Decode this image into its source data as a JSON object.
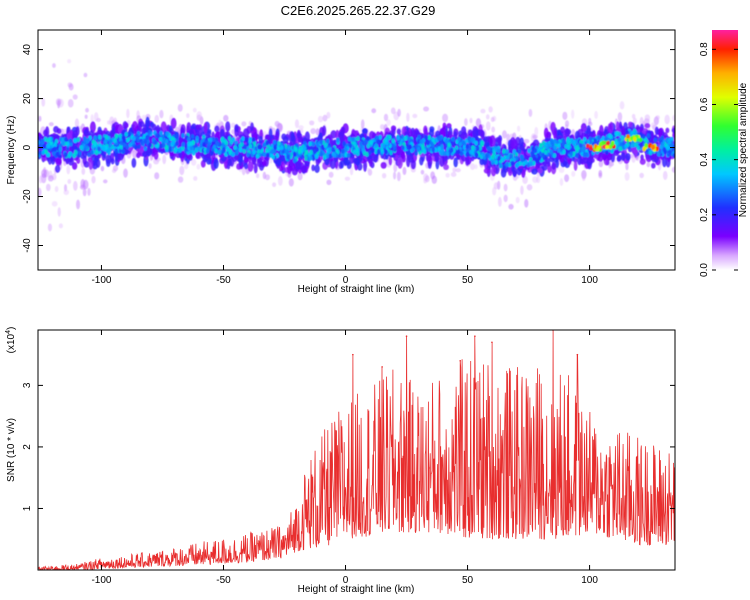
{
  "title": "C2E6.2025.265.22.37.G29",
  "chart_data": [
    {
      "type": "heatmap",
      "name": "spectrogram",
      "xlabel": "Height of straight line (km)",
      "ylabel": "Frequency (Hz)",
      "xlim": [
        -126,
        135
      ],
      "ylim": [
        -50,
        48
      ],
      "xticks": [
        -100,
        -50,
        0,
        50,
        100
      ],
      "yticks": [
        -40,
        -20,
        0,
        20,
        40
      ],
      "colorbar": {
        "label": "Normalized spectral amplitude",
        "range": [
          0.0,
          0.87
        ],
        "ticks": [
          0.0,
          0.2,
          0.4,
          0.6,
          0.8
        ],
        "tick_labels": [
          "0.0",
          "0.2",
          "0.4",
          "0.6",
          "0.8"
        ]
      },
      "ridge": {
        "x": [
          -126,
          -110,
          -100,
          -80,
          -60,
          -40,
          -20,
          -10,
          0,
          20,
          40,
          55,
          65,
          75,
          85,
          100,
          110,
          118,
          125,
          135
        ],
        "freq": [
          0,
          0,
          1,
          3,
          1,
          0,
          -2,
          -1,
          0,
          1,
          1,
          0,
          -5,
          -4,
          0,
          0,
          2,
          4,
          1,
          0
        ]
      },
      "hotspots": [
        {
          "x": 102,
          "freq": 0,
          "amp": 0.85
        },
        {
          "x": 107,
          "freq": 1,
          "amp": 0.85
        },
        {
          "x": 118,
          "freq": 4,
          "amp": 0.75
        },
        {
          "x": 125,
          "freq": 0,
          "amp": 0.85
        }
      ]
    },
    {
      "type": "line",
      "name": "snr",
      "xlabel": "Height of straight line (km)",
      "ylabel": "SNR (10 * v/v)",
      "yscale_label": "(x10",
      "yscale_exp": "4",
      "xlim": [
        -126,
        135
      ],
      "ylim": [
        0,
        3.9
      ],
      "xticks": [
        -100,
        -50,
        0,
        50,
        100
      ],
      "yticks": [
        1,
        2,
        3
      ],
      "series": [
        {
          "name": "SNR",
          "color": "#e82e2e",
          "envelope_x": [
            -126,
            -110,
            -100,
            -80,
            -60,
            -40,
            -25,
            -20,
            -15,
            -10,
            0,
            10,
            20,
            30,
            40,
            50,
            60,
            70,
            80,
            90,
            100,
            110,
            120,
            135
          ],
          "envelope_low": [
            0.0,
            0.0,
            0.02,
            0.05,
            0.08,
            0.12,
            0.2,
            0.3,
            0.35,
            0.35,
            0.5,
            0.55,
            0.6,
            0.6,
            0.6,
            0.5,
            0.5,
            0.5,
            0.5,
            0.5,
            0.6,
            0.5,
            0.4,
            0.4
          ],
          "envelope_high": [
            0.05,
            0.1,
            0.2,
            0.3,
            0.45,
            0.6,
            0.75,
            1.2,
            1.9,
            2.2,
            2.8,
            3.0,
            3.3,
            3.0,
            3.3,
            3.5,
            3.5,
            3.3,
            3.4,
            3.3,
            2.6,
            2.4,
            2.2,
            2.0
          ],
          "peaks": [
            {
              "x": 3,
              "y": 3.5
            },
            {
              "x": 15,
              "y": 3.3
            },
            {
              "x": 25,
              "y": 3.8
            },
            {
              "x": 47,
              "y": 3.4
            },
            {
              "x": 53,
              "y": 3.8
            },
            {
              "x": 60,
              "y": 3.7
            },
            {
              "x": 85,
              "y": 3.9
            },
            {
              "x": 95,
              "y": 3.5
            }
          ]
        }
      ]
    }
  ]
}
